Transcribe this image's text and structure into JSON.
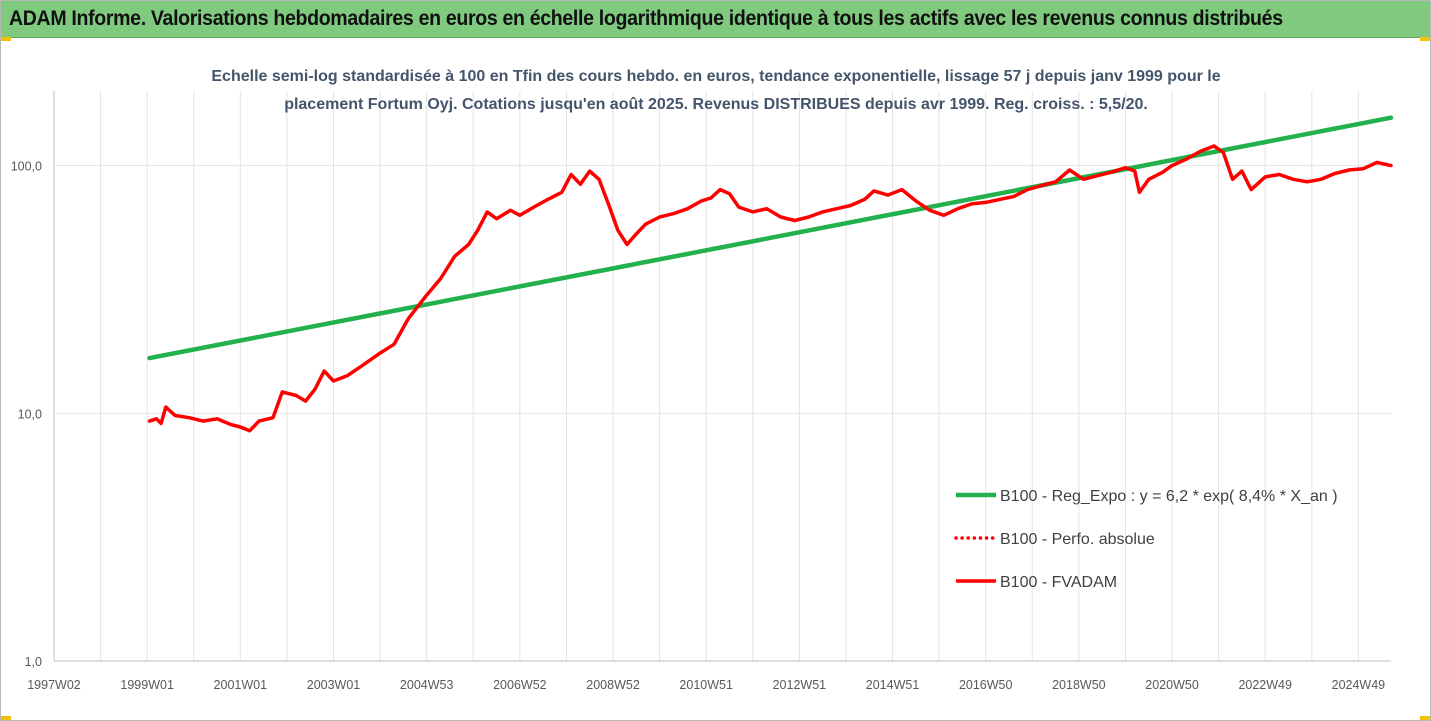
{
  "banner": {
    "title": "ADAM Informe. Valorisations hebdomadaires en euros en échelle logarithmique identique à tous les actifs avec les revenus connus distribués"
  },
  "chart_data": {
    "type": "line",
    "title": "Echelle semi-log standardisée à 100 en Tfin des cours hebdo. en euros, tendance exponentielle, lissage 57 j depuis janv 1999 pour le placement Fortum Oyj. Cotations jusqu'en août 2025. Revenus DISTRIBUES depuis avr 1999. Reg. croiss. : 5,5/20.",
    "subtitle_lines": [
      "Echelle semi-log standardisée à 100 en Tfin des cours hebdo. en euros, tendance exponentielle, lissage 57 j depuis janv 1999 pour le",
      "placement Fortum Oyj. Cotations jusqu'en août 2025.  Revenus DISTRIBUES depuis avr 1999. Reg. croiss. : 5,5/20."
    ],
    "y_scale": "log",
    "ylim": [
      1,
      200
    ],
    "xlim": [
      1997.0,
      2025.7
    ],
    "grid": "vertical",
    "y_ticks": [
      {
        "value": 1,
        "label": "1,0"
      },
      {
        "value": 10,
        "label": "10,0"
      },
      {
        "value": 100,
        "label": "100,0"
      }
    ],
    "x_ticks": [
      {
        "value": 1997.0,
        "label": "1997W02"
      },
      {
        "value": 1999.0,
        "label": "1999W01"
      },
      {
        "value": 2001.0,
        "label": "2001W01"
      },
      {
        "value": 2003.0,
        "label": "2003W01"
      },
      {
        "value": 2005.0,
        "label": "2004W53"
      },
      {
        "value": 2007.0,
        "label": "2006W52"
      },
      {
        "value": 2009.0,
        "label": "2008W52"
      },
      {
        "value": 2011.0,
        "label": "2010W51"
      },
      {
        "value": 2013.0,
        "label": "2012W51"
      },
      {
        "value": 2015.0,
        "label": "2014W51"
      },
      {
        "value": 2017.0,
        "label": "2016W50"
      },
      {
        "value": 2019.0,
        "label": "2018W50"
      },
      {
        "value": 2021.0,
        "label": "2020W50"
      },
      {
        "value": 2023.0,
        "label": "2022W49"
      },
      {
        "value": 2025.0,
        "label": "2024W49"
      }
    ],
    "legend_position": "bottom-right",
    "series": [
      {
        "name": "B100 - Reg_Expo : y = 6,2 * exp( 8,4% *  X_an )",
        "color": "#22b14c",
        "style": "solid",
        "points": [
          [
            1999.05,
            16.7
          ],
          [
            2025.7,
            156
          ]
        ]
      },
      {
        "name": "B100 - Perfo. absolue",
        "color": "#ff0000",
        "style": "dotted",
        "points": []
      },
      {
        "name": "B100 - FVADAM",
        "color": "#ff0000",
        "style": "solid",
        "points": [
          [
            1999.05,
            9.3
          ],
          [
            1999.2,
            9.5
          ],
          [
            1999.3,
            9.1
          ],
          [
            1999.4,
            10.6
          ],
          [
            1999.6,
            9.8
          ],
          [
            1999.9,
            9.6
          ],
          [
            2000.2,
            9.3
          ],
          [
            2000.5,
            9.5
          ],
          [
            2000.8,
            9.0
          ],
          [
            2001.0,
            8.8
          ],
          [
            2001.2,
            8.5
          ],
          [
            2001.4,
            9.3
          ],
          [
            2001.7,
            9.6
          ],
          [
            2001.9,
            12.2
          ],
          [
            2002.2,
            11.8
          ],
          [
            2002.4,
            11.2
          ],
          [
            2002.6,
            12.5
          ],
          [
            2002.8,
            14.8
          ],
          [
            2003.0,
            13.5
          ],
          [
            2003.3,
            14.2
          ],
          [
            2003.6,
            15.5
          ],
          [
            2004.0,
            17.5
          ],
          [
            2004.3,
            19.0
          ],
          [
            2004.6,
            24.0
          ],
          [
            2005.0,
            30.0
          ],
          [
            2005.3,
            35.0
          ],
          [
            2005.6,
            43.0
          ],
          [
            2005.9,
            48.0
          ],
          [
            2006.1,
            55.0
          ],
          [
            2006.3,
            65.0
          ],
          [
            2006.5,
            61.0
          ],
          [
            2006.8,
            66.0
          ],
          [
            2007.0,
            63.0
          ],
          [
            2007.3,
            68.0
          ],
          [
            2007.6,
            73.0
          ],
          [
            2007.9,
            78.0
          ],
          [
            2008.1,
            92.0
          ],
          [
            2008.3,
            84.0
          ],
          [
            2008.5,
            95.0
          ],
          [
            2008.7,
            88.0
          ],
          [
            2008.9,
            70.0
          ],
          [
            2009.1,
            55.0
          ],
          [
            2009.3,
            48.0
          ],
          [
            2009.5,
            53.0
          ],
          [
            2009.7,
            58.0
          ],
          [
            2010.0,
            62.0
          ],
          [
            2010.3,
            64.0
          ],
          [
            2010.6,
            67.0
          ],
          [
            2010.9,
            72.0
          ],
          [
            2011.1,
            74.0
          ],
          [
            2011.3,
            80.0
          ],
          [
            2011.5,
            77.0
          ],
          [
            2011.7,
            68.0
          ],
          [
            2012.0,
            65.0
          ],
          [
            2012.3,
            67.0
          ],
          [
            2012.6,
            62.0
          ],
          [
            2012.9,
            60.0
          ],
          [
            2013.2,
            62.0
          ],
          [
            2013.5,
            65.0
          ],
          [
            2013.8,
            67.0
          ],
          [
            2014.1,
            69.0
          ],
          [
            2014.4,
            73.0
          ],
          [
            2014.6,
            79.0
          ],
          [
            2014.9,
            76.0
          ],
          [
            2015.2,
            80.0
          ],
          [
            2015.5,
            72.0
          ],
          [
            2015.8,
            66.0
          ],
          [
            2016.1,
            63.0
          ],
          [
            2016.4,
            67.0
          ],
          [
            2016.7,
            70.0
          ],
          [
            2017.0,
            71.0
          ],
          [
            2017.3,
            73.0
          ],
          [
            2017.6,
            75.0
          ],
          [
            2017.9,
            80.0
          ],
          [
            2018.2,
            83.0
          ],
          [
            2018.5,
            86.0
          ],
          [
            2018.8,
            96.0
          ],
          [
            2019.1,
            88.0
          ],
          [
            2019.4,
            91.0
          ],
          [
            2019.7,
            94.0
          ],
          [
            2020.0,
            98.0
          ],
          [
            2020.2,
            95.0
          ],
          [
            2020.3,
            78.0
          ],
          [
            2020.5,
            88.0
          ],
          [
            2020.8,
            94.0
          ],
          [
            2021.0,
            100.0
          ],
          [
            2021.3,
            106.0
          ],
          [
            2021.6,
            114.0
          ],
          [
            2021.9,
            120.0
          ],
          [
            2022.1,
            113.0
          ],
          [
            2022.3,
            88.0
          ],
          [
            2022.5,
            95.0
          ],
          [
            2022.7,
            80.0
          ],
          [
            2023.0,
            90.0
          ],
          [
            2023.3,
            92.0
          ],
          [
            2023.6,
            88.0
          ],
          [
            2023.9,
            86.0
          ],
          [
            2024.2,
            88.0
          ],
          [
            2024.5,
            93.0
          ],
          [
            2024.8,
            96.0
          ],
          [
            2025.1,
            97.0
          ],
          [
            2025.4,
            103.0
          ],
          [
            2025.7,
            100.0
          ]
        ]
      }
    ]
  }
}
